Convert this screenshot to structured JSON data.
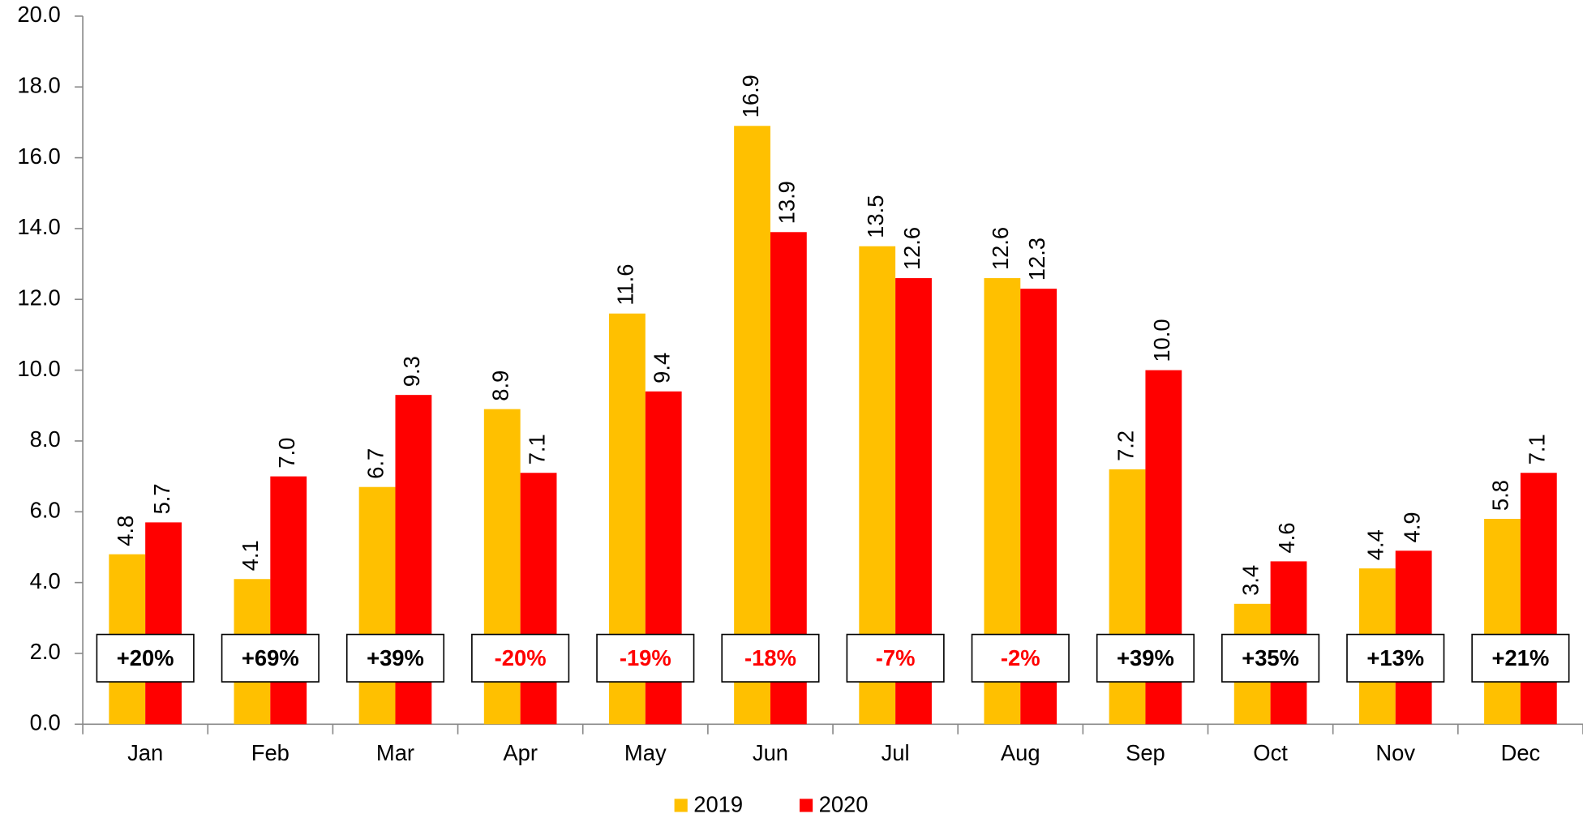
{
  "chart_data": {
    "type": "bar",
    "categories": [
      "Jan",
      "Feb",
      "Mar",
      "Apr",
      "May",
      "Jun",
      "Jul",
      "Aug",
      "Sep",
      "Oct",
      "Nov",
      "Dec"
    ],
    "series": [
      {
        "name": "2019",
        "color": "#ffc000",
        "values": [
          4.8,
          4.1,
          6.7,
          8.9,
          11.6,
          16.9,
          13.5,
          12.6,
          7.2,
          3.4,
          4.4,
          5.8
        ],
        "value_labels": [
          "4.8",
          "4.1",
          "6.7",
          "8.9",
          "11.6",
          "16.9",
          "13.5",
          "12.6",
          "7.2",
          "3.4",
          "4.4",
          "5.8"
        ]
      },
      {
        "name": "2020",
        "color": "#ff0000",
        "values": [
          5.7,
          7.0,
          9.3,
          7.1,
          9.4,
          13.9,
          12.6,
          12.3,
          10.0,
          4.6,
          4.9,
          7.1
        ],
        "value_labels": [
          "5.7",
          "7.0",
          "9.3",
          "7.1",
          "9.4",
          "13.9",
          "12.6",
          "12.3",
          "10.0",
          "4.6",
          "4.9",
          "7.1"
        ]
      }
    ],
    "annotations": [
      {
        "text": "+20%",
        "color": "#000000"
      },
      {
        "text": "+69%",
        "color": "#000000"
      },
      {
        "text": "+39%",
        "color": "#000000"
      },
      {
        "text": "-20%",
        "color": "#ff0000"
      },
      {
        "text": "-19%",
        "color": "#ff0000"
      },
      {
        "text": "-18%",
        "color": "#ff0000"
      },
      {
        "text": "-7%",
        "color": "#ff0000"
      },
      {
        "text": "-2%",
        "color": "#ff0000"
      },
      {
        "text": "+39%",
        "color": "#000000"
      },
      {
        "text": "+35%",
        "color": "#000000"
      },
      {
        "text": "+13%",
        "color": "#000000"
      },
      {
        "text": "+21%",
        "color": "#000000"
      }
    ],
    "ylim": [
      0,
      20
    ],
    "yticks": [
      {
        "value": 0,
        "label": "0.0"
      },
      {
        "value": 2,
        "label": "2.0"
      },
      {
        "value": 4,
        "label": "4.0"
      },
      {
        "value": 6,
        "label": "6.0"
      },
      {
        "value": 8,
        "label": "8.0"
      },
      {
        "value": 10,
        "label": "10.0"
      },
      {
        "value": 12,
        "label": "12.0"
      },
      {
        "value": 14,
        "label": "14.0"
      },
      {
        "value": 16,
        "label": "16.0"
      },
      {
        "value": 18,
        "label": "18.0"
      },
      {
        "value": 20,
        "label": "20.0"
      }
    ],
    "legend": "bottom"
  }
}
